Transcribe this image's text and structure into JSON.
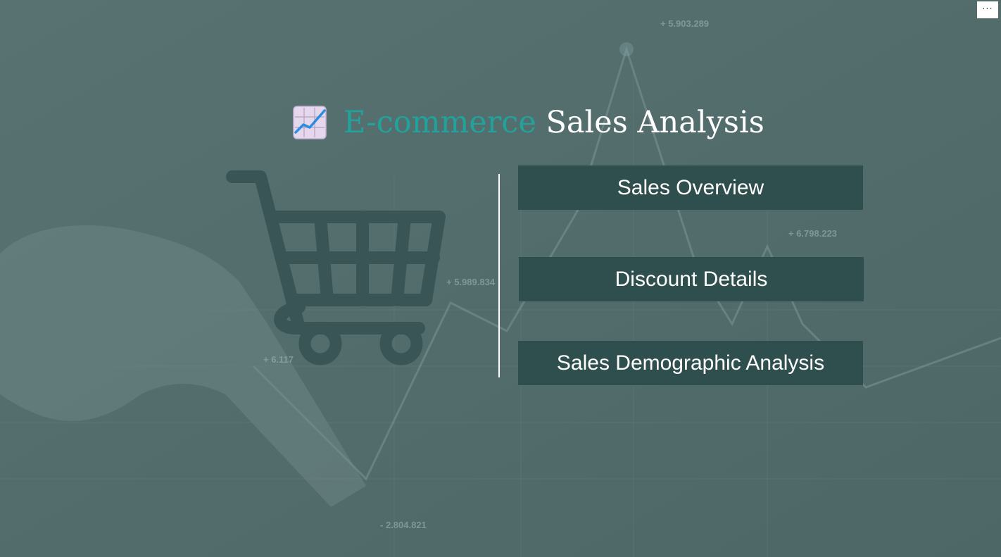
{
  "page": {
    "title_accent": "E-commerce",
    "title_main": "Sales Analysis"
  },
  "background": {
    "values": [
      "+ 5.903.289",
      "+ 6.798.223",
      "+ 5.989.834",
      "+ 6.117",
      "- 2.804.821"
    ]
  },
  "nav": {
    "buttons": [
      {
        "label": "Sales Overview"
      },
      {
        "label": "Discount Details"
      },
      {
        "label": "Sales Demographic Analysis"
      }
    ]
  },
  "toolbar": {
    "more_label": "···"
  },
  "colors": {
    "accent": "#21a39b",
    "button_bg": "#2f4f4e",
    "background": "#4f6a6b",
    "cart": "#395556"
  },
  "icons": [
    "chart-increasing-icon",
    "shopping-cart-icon",
    "more-options-icon"
  ]
}
